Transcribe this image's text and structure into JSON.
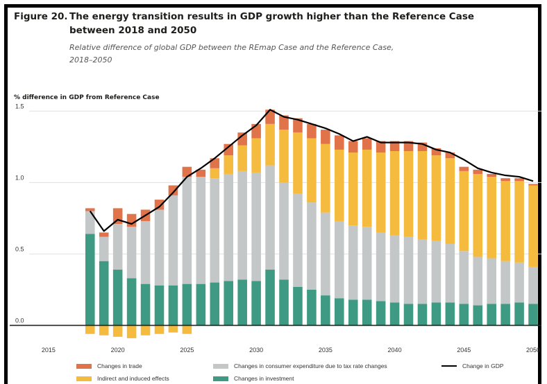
{
  "figure": {
    "number": "Figure 20.",
    "title_line1": "The energy transition results in GDP growth higher than the Reference Case",
    "title_line2": "between 2018 and 2050",
    "subtitle_line1": "Relative difference of global GDP between the REmap Case and the Reference Case,",
    "subtitle_line2": "2018–2050"
  },
  "colors": {
    "trade": "#e0734a",
    "indirect": "#f5bb3f",
    "consumer": "#c3c7c7",
    "investment": "#3e9a82",
    "gdp_line": "#000000",
    "grid": "#e0e0e0"
  },
  "chart_data": {
    "type": "bar",
    "stacked": true,
    "ylabel": "% difference in GDP from Reference Case",
    "ylim": [
      -0.1,
      1.55
    ],
    "yticks": [
      "0.0",
      "0.5",
      "1.0",
      "1.5"
    ],
    "xlim": [
      2013.8,
      2050.6
    ],
    "xticks": [
      "2015",
      "2020",
      "2025",
      "2030",
      "2035",
      "2040",
      "2045",
      "2050"
    ],
    "grid": true,
    "legend_position": "bottom",
    "categories": [
      "2018",
      "2019",
      "2020",
      "2021",
      "2022",
      "2023",
      "2024",
      "2025",
      "2026",
      "2027",
      "2028",
      "2029",
      "2030",
      "2031",
      "2032",
      "2033",
      "2034",
      "2035",
      "2036",
      "2037",
      "2038",
      "2039",
      "2040",
      "2041",
      "2042",
      "2043",
      "2044",
      "2045",
      "2046",
      "2047",
      "2048",
      "2049",
      "2050"
    ],
    "series": [
      {
        "key": "investment",
        "name": "Changes in investment",
        "values": [
          0.64,
          0.45,
          0.39,
          0.33,
          0.29,
          0.28,
          0.28,
          0.29,
          0.29,
          0.3,
          0.31,
          0.32,
          0.31,
          0.39,
          0.32,
          0.27,
          0.25,
          0.21,
          0.19,
          0.18,
          0.18,
          0.17,
          0.16,
          0.15,
          0.15,
          0.16,
          0.16,
          0.15,
          0.14,
          0.15,
          0.15,
          0.16,
          0.15
        ]
      },
      {
        "key": "consumer",
        "name": "Changes in consumer expenditure due to tax rate changes",
        "values": [
          0.16,
          0.17,
          0.32,
          0.36,
          0.44,
          0.53,
          0.63,
          0.75,
          0.75,
          0.73,
          0.75,
          0.76,
          0.76,
          0.73,
          0.68,
          0.65,
          0.61,
          0.58,
          0.54,
          0.52,
          0.51,
          0.48,
          0.47,
          0.47,
          0.45,
          0.43,
          0.41,
          0.37,
          0.34,
          0.32,
          0.3,
          0.28,
          0.26
        ]
      },
      {
        "key": "indirect",
        "name": "Indirect and induced effects",
        "values": [
          -0.06,
          -0.07,
          -0.08,
          -0.09,
          -0.07,
          -0.06,
          -0.05,
          -0.06,
          0.0,
          0.07,
          0.13,
          0.18,
          0.24,
          0.29,
          0.37,
          0.43,
          0.45,
          0.48,
          0.5,
          0.51,
          0.54,
          0.56,
          0.59,
          0.6,
          0.62,
          0.6,
          0.6,
          0.56,
          0.58,
          0.57,
          0.56,
          0.57,
          0.57
        ]
      },
      {
        "key": "trade",
        "name": "Changes in trade",
        "values": [
          0.02,
          0.03,
          0.11,
          0.09,
          0.08,
          0.07,
          0.07,
          0.07,
          0.05,
          0.07,
          0.08,
          0.09,
          0.1,
          0.1,
          0.1,
          0.1,
          0.1,
          0.1,
          0.1,
          0.08,
          0.08,
          0.08,
          0.07,
          0.07,
          0.06,
          0.05,
          0.04,
          0.03,
          0.03,
          0.02,
          0.02,
          0.02,
          0.01
        ]
      }
    ],
    "line": {
      "name": "Change in GDP",
      "values": [
        0.8,
        0.66,
        0.74,
        0.71,
        0.77,
        0.83,
        0.93,
        1.04,
        1.1,
        1.17,
        1.25,
        1.33,
        1.4,
        1.51,
        1.46,
        1.44,
        1.41,
        1.38,
        1.34,
        1.29,
        1.32,
        1.28,
        1.28,
        1.28,
        1.27,
        1.23,
        1.21,
        1.16,
        1.1,
        1.07,
        1.05,
        1.04,
        1.01
      ]
    }
  },
  "legend": {
    "trade": "Changes in trade",
    "indirect": "Indirect and induced effects",
    "consumer": "Changes in consumer expenditure due to tax rate changes",
    "investment": "Changes in investment",
    "gdp": "Change in GDP"
  }
}
